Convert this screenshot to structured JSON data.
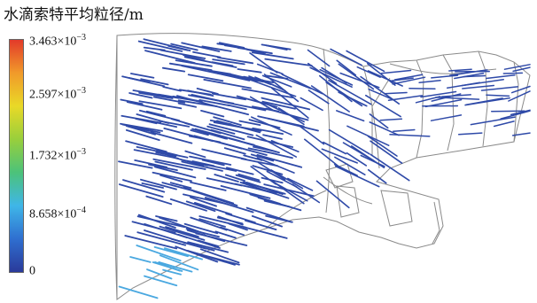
{
  "legend": {
    "title": "水滴索特平均粒径/m",
    "colormap": [
      "#2a3a9a",
      "#2f6fd0",
      "#3fb6e8",
      "#4cc27a",
      "#98cf3c",
      "#e9d927",
      "#f19a2a",
      "#e23a2a"
    ],
    "ticks": [
      {
        "mantissa": "3.463×10",
        "exp": "−3"
      },
      {
        "mantissa": "2.597×10",
        "exp": "−3"
      },
      {
        "mantissa": "1.732×10",
        "exp": "−3"
      },
      {
        "mantissa": "8.658×10",
        "exp": "−4"
      },
      {
        "mantissa": "0",
        "exp": ""
      }
    ]
  },
  "colors": {
    "trajectory_main": "#2f4aa8",
    "trajectory_light": "#4aa8e0",
    "geometry_outline": "#8a8a8a"
  }
}
